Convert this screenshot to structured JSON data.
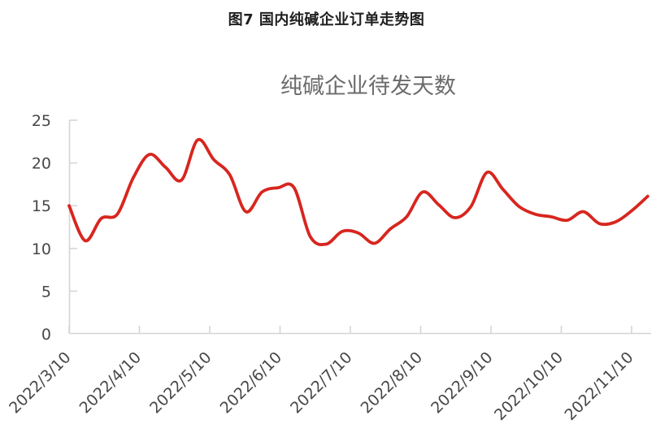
{
  "figure": {
    "caption": "图7 国内纯碱企业订单走势图"
  },
  "chart_data": {
    "type": "line",
    "title": "纯碱企业待发天数",
    "xlabel": "",
    "ylabel": "",
    "grid": false,
    "legend_position": "none",
    "ylim": [
      0,
      25
    ],
    "y_ticks": [
      0,
      5,
      10,
      15,
      20,
      25
    ],
    "x_tick_labels": [
      "2022/3/10",
      "2022/4/10",
      "2022/5/10",
      "2022/6/10",
      "2022/7/10",
      "2022/8/10",
      "2022/9/10",
      "2022/10/10",
      "2022/11/10"
    ],
    "x": [
      "2022/3/10",
      "2022/3/17",
      "2022/3/24",
      "2022/3/31",
      "2022/4/7",
      "2022/4/14",
      "2022/4/21",
      "2022/4/28",
      "2022/5/5",
      "2022/5/12",
      "2022/5/19",
      "2022/5/26",
      "2022/6/2",
      "2022/6/9",
      "2022/6/16",
      "2022/6/23",
      "2022/6/30",
      "2022/7/7",
      "2022/7/14",
      "2022/7/21",
      "2022/7/28",
      "2022/8/4",
      "2022/8/11",
      "2022/8/18",
      "2022/8/25",
      "2022/9/1",
      "2022/9/8",
      "2022/9/15",
      "2022/9/22",
      "2022/9/29",
      "2022/10/6",
      "2022/10/13",
      "2022/10/20",
      "2022/10/27",
      "2022/11/3",
      "2022/11/10",
      "2022/11/17"
    ],
    "series": [
      {
        "name": "纯碱企业待发天数",
        "smooth": true,
        "color": "#d7261f",
        "values": [
          15.0,
          10.9,
          13.5,
          14.0,
          18.3,
          21.0,
          19.5,
          18.0,
          22.7,
          20.4,
          18.6,
          14.3,
          16.6,
          17.1,
          17.1,
          11.4,
          10.5,
          12.0,
          11.8,
          10.6,
          12.3,
          13.7,
          16.6,
          15.1,
          13.6,
          14.9,
          18.9,
          16.9,
          14.9,
          14.0,
          13.7,
          13.3,
          14.3,
          12.9,
          13.1,
          14.4,
          16.1
        ]
      }
    ]
  },
  "colors": {
    "background": "#ffffff",
    "caption_text": "#1f1f1f",
    "chart_title_text": "#6b6b6b",
    "axis_line": "#d5d5d5",
    "tick_label_text": "#474747",
    "series_red": "#d7261f"
  }
}
